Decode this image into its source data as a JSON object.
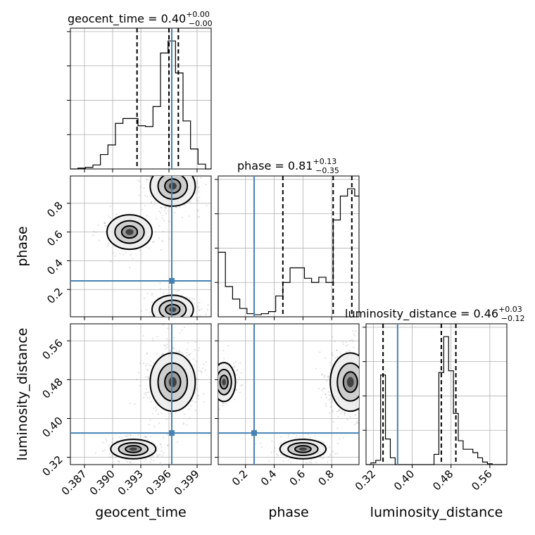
{
  "params": [
    "geocent_time",
    "phase",
    "luminosity_distance"
  ],
  "titles": [
    {
      "param": "geocent_time",
      "value": "0.40",
      "plus": "+0.00",
      "minus": "−0.00"
    },
    {
      "param": "phase",
      "value": "0.81",
      "plus": "+0.13",
      "minus": "−0.35"
    },
    {
      "param": "luminosity_distance",
      "value": "0.46",
      "plus": "+0.03",
      "minus": "−0.12"
    }
  ],
  "colors": {
    "truth": "#4682b4",
    "line": "#000000",
    "grid": "#b0b0b0"
  },
  "chart_data": {
    "type": "corner",
    "grid": true,
    "ranges": {
      "geocent_time": [
        0.3855,
        0.4005
      ],
      "phase": [
        0.01,
        0.99
      ],
      "luminosity_distance": [
        0.305,
        0.595
      ]
    },
    "ticks": {
      "geocent_time": [
        "0.387",
        "0.390",
        "0.393",
        "0.396",
        "0.399"
      ],
      "phase": [
        "0.2",
        "0.4",
        "0.6",
        "0.8"
      ],
      "luminosity_distance": [
        "0.32",
        "0.40",
        "0.48",
        "0.56"
      ]
    },
    "truths": {
      "geocent_time": 0.3963,
      "phase": 0.26,
      "luminosity_distance": 0.37
    },
    "quantiles": {
      "geocent_time": [
        0.3926,
        0.396,
        0.397
      ],
      "phase": [
        0.46,
        0.81,
        0.94
      ],
      "luminosity_distance": [
        0.34,
        0.46,
        0.49
      ]
    },
    "histograms": {
      "geocent_time": {
        "edges": [
          0.3855,
          0.3863,
          0.3871,
          0.3879,
          0.3887,
          0.3895,
          0.3903,
          0.3911,
          0.3919,
          0.3927,
          0.3935,
          0.3943,
          0.3951,
          0.3959,
          0.3967,
          0.3975,
          0.3983,
          0.3991,
          0.3999,
          0.4005
        ],
        "counts": [
          0,
          1,
          2,
          5,
          18,
          30,
          57,
          63,
          63,
          54,
          53,
          78,
          145,
          160,
          120,
          60,
          25,
          6,
          0
        ]
      },
      "phase": {
        "edges": [
          0.01,
          0.06,
          0.11,
          0.16,
          0.21,
          0.26,
          0.31,
          0.36,
          0.41,
          0.46,
          0.51,
          0.56,
          0.61,
          0.66,
          0.71,
          0.76,
          0.81,
          0.86,
          0.91,
          0.96,
          0.99
        ],
        "counts": [
          62,
          29,
          17,
          8,
          3,
          2,
          3,
          5,
          20,
          33,
          47,
          47,
          37,
          33,
          38,
          33,
          93,
          116,
          123,
          116
        ]
      },
      "luminosity_distance": {
        "edges": [
          0.305,
          0.315,
          0.325,
          0.335,
          0.345,
          0.355,
          0.365,
          0.375,
          0.385,
          0.395,
          0.405,
          0.415,
          0.425,
          0.435,
          0.445,
          0.455,
          0.465,
          0.475,
          0.485,
          0.495,
          0.505,
          0.515,
          0.525,
          0.535,
          0.545,
          0.555,
          0.565,
          0.575,
          0.585,
          0.595
        ],
        "counts": [
          0,
          2,
          5,
          105,
          30,
          8,
          0,
          0,
          0,
          0,
          0,
          0,
          0,
          0,
          12,
          108,
          150,
          110,
          60,
          28,
          18,
          18,
          14,
          8,
          3,
          1,
          0,
          0,
          0
        ]
      }
    }
  }
}
